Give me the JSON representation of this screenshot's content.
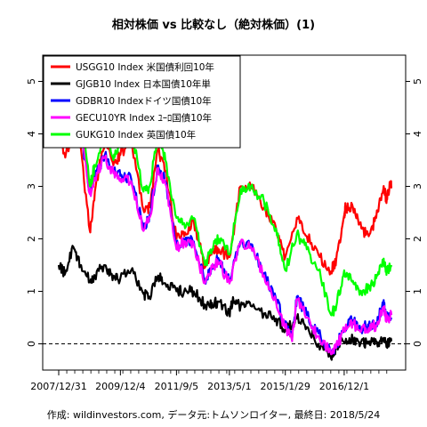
{
  "title": "相対株価 vs 比較なし（絶対株価）(1)",
  "footer": "作成: wildinvestors.com, データ元:トムソンロイター, 最終日: 2018/5/24",
  "chart_data": {
    "type": "line",
    "title": "相対株価 vs 比較なし（絶対株価）(1)",
    "xlabel": "",
    "ylabel": "",
    "x_ticks": [
      "2007/12/31",
      "2009/12/4",
      "2011/9/5",
      "2013/5/1",
      "2015/1/29",
      "2016/12/1"
    ],
    "x_range": [
      "2007-12-31",
      "2018-05-24"
    ],
    "ylim": [
      -0.5,
      5.5
    ],
    "y_ticks": [
      0,
      1,
      2,
      3,
      4,
      5
    ],
    "reference_line": {
      "y": 0,
      "style": "dashed",
      "color": "#000000"
    },
    "legend_position": "top-left",
    "grid": false,
    "series": [
      {
        "name": "USGG10 Index 米国債利回10年",
        "color": "#ff0000",
        "points": [
          [
            "2007-12-31",
            4.02
          ],
          [
            "2008-03-15",
            3.55
          ],
          [
            "2008-06-15",
            4.05
          ],
          [
            "2008-09-01",
            3.8
          ],
          [
            "2008-12-20",
            2.15
          ],
          [
            "2009-02-15",
            2.9
          ],
          [
            "2009-06-10",
            3.9
          ],
          [
            "2009-09-15",
            3.4
          ],
          [
            "2009-12-04",
            3.6
          ],
          [
            "2010-04-05",
            3.9
          ],
          [
            "2010-08-25",
            2.55
          ],
          [
            "2010-11-01",
            2.6
          ],
          [
            "2011-02-08",
            3.7
          ],
          [
            "2011-05-01",
            3.3
          ],
          [
            "2011-09-05",
            2.0
          ],
          [
            "2011-12-01",
            2.05
          ],
          [
            "2012-03-20",
            2.35
          ],
          [
            "2012-07-25",
            1.45
          ],
          [
            "2012-10-15",
            1.75
          ],
          [
            "2013-01-01",
            1.8
          ],
          [
            "2013-05-01",
            1.65
          ],
          [
            "2013-09-05",
            3.0
          ],
          [
            "2013-12-31",
            3.0
          ],
          [
            "2014-06-01",
            2.6
          ],
          [
            "2014-10-15",
            2.2
          ],
          [
            "2015-01-29",
            1.65
          ],
          [
            "2015-06-10",
            2.4
          ],
          [
            "2015-10-01",
            2.05
          ],
          [
            "2016-02-11",
            1.7
          ],
          [
            "2016-07-05",
            1.38
          ],
          [
            "2016-09-01",
            1.6
          ],
          [
            "2016-12-01",
            2.45
          ],
          [
            "2016-12-15",
            2.6
          ],
          [
            "2017-03-10",
            2.6
          ],
          [
            "2017-06-15",
            2.2
          ],
          [
            "2017-09-07",
            2.05
          ],
          [
            "2017-12-01",
            2.4
          ],
          [
            "2018-02-21",
            2.95
          ],
          [
            "2018-04-01",
            2.75
          ],
          [
            "2018-05-17",
            3.1
          ],
          [
            "2018-05-24",
            3.0
          ]
        ]
      },
      {
        "name": "GJGB10 Index 日本国債10年単",
        "color": "#000000",
        "points": [
          [
            "2007-12-31",
            1.5
          ],
          [
            "2008-03-15",
            1.35
          ],
          [
            "2008-06-15",
            1.85
          ],
          [
            "2008-09-01",
            1.5
          ],
          [
            "2008-12-20",
            1.2
          ],
          [
            "2009-02-15",
            1.3
          ],
          [
            "2009-06-10",
            1.5
          ],
          [
            "2009-09-15",
            1.3
          ],
          [
            "2009-12-04",
            1.25
          ],
          [
            "2010-04-05",
            1.4
          ],
          [
            "2010-08-25",
            0.95
          ],
          [
            "2010-11-01",
            0.9
          ],
          [
            "2011-02-08",
            1.3
          ],
          [
            "2011-05-01",
            1.15
          ],
          [
            "2011-09-05",
            1.0
          ],
          [
            "2011-12-01",
            1.0
          ],
          [
            "2012-03-20",
            1.0
          ],
          [
            "2012-07-25",
            0.75
          ],
          [
            "2012-10-15",
            0.78
          ],
          [
            "2013-01-01",
            0.8
          ],
          [
            "2013-05-01",
            0.6
          ],
          [
            "2013-06-15",
            0.85
          ],
          [
            "2013-09-05",
            0.7
          ],
          [
            "2013-12-31",
            0.72
          ],
          [
            "2014-06-01",
            0.58
          ],
          [
            "2014-10-15",
            0.48
          ],
          [
            "2015-01-29",
            0.25
          ],
          [
            "2015-06-10",
            0.48
          ],
          [
            "2015-10-01",
            0.32
          ],
          [
            "2016-02-11",
            0.0
          ],
          [
            "2016-07-05",
            -0.28
          ],
          [
            "2016-09-01",
            -0.05
          ],
          [
            "2016-12-01",
            0.02
          ],
          [
            "2017-03-10",
            0.08
          ],
          [
            "2017-06-15",
            0.05
          ],
          [
            "2017-09-07",
            0.0
          ],
          [
            "2017-12-01",
            0.04
          ],
          [
            "2018-02-21",
            0.06
          ],
          [
            "2018-04-01",
            0.03
          ],
          [
            "2018-05-24",
            0.05
          ]
        ]
      },
      {
        "name": "GDBR10 Indexドイツ国債10年",
        "color": "#0000ff",
        "points": [
          [
            "2007-12-31",
            4.3
          ],
          [
            "2008-03-15",
            3.8
          ],
          [
            "2008-06-15",
            4.6
          ],
          [
            "2008-09-01",
            4.1
          ],
          [
            "2008-12-20",
            2.9
          ],
          [
            "2009-02-15",
            3.2
          ],
          [
            "2009-06-10",
            3.6
          ],
          [
            "2009-09-15",
            3.3
          ],
          [
            "2009-12-04",
            3.2
          ],
          [
            "2010-04-05",
            3.15
          ],
          [
            "2010-08-25",
            2.2
          ],
          [
            "2010-11-01",
            2.45
          ],
          [
            "2011-02-08",
            3.4
          ],
          [
            "2011-05-01",
            3.1
          ],
          [
            "2011-09-05",
            1.85
          ],
          [
            "2011-12-01",
            2.0
          ],
          [
            "2012-03-20",
            1.95
          ],
          [
            "2012-07-25",
            1.2
          ],
          [
            "2012-10-15",
            1.5
          ],
          [
            "2013-01-01",
            1.6
          ],
          [
            "2013-05-01",
            1.2
          ],
          [
            "2013-09-05",
            1.95
          ],
          [
            "2013-12-31",
            1.9
          ],
          [
            "2014-06-01",
            1.35
          ],
          [
            "2014-10-15",
            0.85
          ],
          [
            "2015-01-29",
            0.35
          ],
          [
            "2015-04-17",
            0.1
          ],
          [
            "2015-06-10",
            0.9
          ],
          [
            "2015-10-01",
            0.55
          ],
          [
            "2016-02-11",
            0.2
          ],
          [
            "2016-07-05",
            -0.18
          ],
          [
            "2016-09-01",
            -0.05
          ],
          [
            "2016-12-01",
            0.3
          ],
          [
            "2017-03-10",
            0.45
          ],
          [
            "2017-06-15",
            0.3
          ],
          [
            "2017-09-07",
            0.35
          ],
          [
            "2017-12-01",
            0.4
          ],
          [
            "2018-02-21",
            0.75
          ],
          [
            "2018-04-01",
            0.5
          ],
          [
            "2018-05-24",
            0.5
          ]
        ]
      },
      {
        "name": "GECU10YR Index ﾕｰﾛ国債10年",
        "color": "#ff00ff",
        "points": [
          [
            "2007-12-31",
            4.3
          ],
          [
            "2008-03-15",
            3.8
          ],
          [
            "2008-06-15",
            4.6
          ],
          [
            "2008-09-01",
            4.1
          ],
          [
            "2008-12-20",
            2.85
          ],
          [
            "2009-02-15",
            3.15
          ],
          [
            "2009-06-10",
            3.55
          ],
          [
            "2009-09-15",
            3.25
          ],
          [
            "2009-12-04",
            3.15
          ],
          [
            "2010-04-05",
            3.1
          ],
          [
            "2010-08-25",
            2.15
          ],
          [
            "2010-11-01",
            2.4
          ],
          [
            "2011-02-08",
            3.35
          ],
          [
            "2011-05-01",
            3.05
          ],
          [
            "2011-09-05",
            1.8
          ],
          [
            "2011-12-01",
            1.95
          ],
          [
            "2012-03-20",
            1.9
          ],
          [
            "2012-07-25",
            1.15
          ],
          [
            "2012-10-15",
            1.45
          ],
          [
            "2013-01-01",
            1.55
          ],
          [
            "2013-05-01",
            1.15
          ],
          [
            "2013-09-05",
            1.9
          ],
          [
            "2013-12-31",
            1.85
          ],
          [
            "2014-06-01",
            1.3
          ],
          [
            "2014-10-15",
            0.8
          ],
          [
            "2015-01-29",
            0.3
          ],
          [
            "2015-04-17",
            0.05
          ],
          [
            "2015-06-10",
            0.85
          ],
          [
            "2015-10-01",
            0.5
          ],
          [
            "2016-02-11",
            0.15
          ],
          [
            "2016-07-05",
            -0.2
          ],
          [
            "2016-09-01",
            -0.08
          ],
          [
            "2016-12-01",
            0.25
          ],
          [
            "2017-03-10",
            0.4
          ],
          [
            "2017-06-15",
            0.25
          ],
          [
            "2017-09-07",
            0.3
          ],
          [
            "2017-12-01",
            0.35
          ],
          [
            "2018-02-21",
            0.7
          ],
          [
            "2018-04-01",
            0.45
          ],
          [
            "2018-05-24",
            0.55
          ]
        ]
      },
      {
        "name": "GUKG10 Index 英国債10年",
        "color": "#00ff00",
        "points": [
          [
            "2007-12-31",
            4.5
          ],
          [
            "2008-03-15",
            4.3
          ],
          [
            "2008-06-15",
            5.2
          ],
          [
            "2008-09-01",
            4.5
          ],
          [
            "2008-12-20",
            3.0
          ],
          [
            "2009-02-15",
            3.4
          ],
          [
            "2009-06-10",
            4.0
          ],
          [
            "2009-09-15",
            3.5
          ],
          [
            "2009-12-04",
            3.9
          ],
          [
            "2010-04-05",
            4.1
          ],
          [
            "2010-08-25",
            2.9
          ],
          [
            "2010-11-01",
            3.0
          ],
          [
            "2011-02-08",
            4.0
          ],
          [
            "2011-05-01",
            3.5
          ],
          [
            "2011-09-05",
            2.4
          ],
          [
            "2011-12-01",
            2.3
          ],
          [
            "2012-03-20",
            2.4
          ],
          [
            "2012-07-25",
            1.5
          ],
          [
            "2012-10-15",
            1.8
          ],
          [
            "2013-01-01",
            2.0
          ],
          [
            "2013-05-01",
            1.7
          ],
          [
            "2013-09-05",
            2.95
          ],
          [
            "2013-12-31",
            3.0
          ],
          [
            "2014-06-01",
            2.7
          ],
          [
            "2014-10-15",
            2.2
          ],
          [
            "2015-01-29",
            1.4
          ],
          [
            "2015-06-10",
            2.1
          ],
          [
            "2015-10-01",
            1.8
          ],
          [
            "2016-02-11",
            1.4
          ],
          [
            "2016-07-05",
            0.55
          ],
          [
            "2016-09-01",
            0.7
          ],
          [
            "2016-12-01",
            1.4
          ],
          [
            "2017-03-10",
            1.2
          ],
          [
            "2017-06-15",
            1.0
          ],
          [
            "2017-09-07",
            1.05
          ],
          [
            "2017-12-01",
            1.25
          ],
          [
            "2018-02-21",
            1.6
          ],
          [
            "2018-04-01",
            1.4
          ],
          [
            "2018-05-24",
            1.5
          ]
        ]
      }
    ]
  }
}
